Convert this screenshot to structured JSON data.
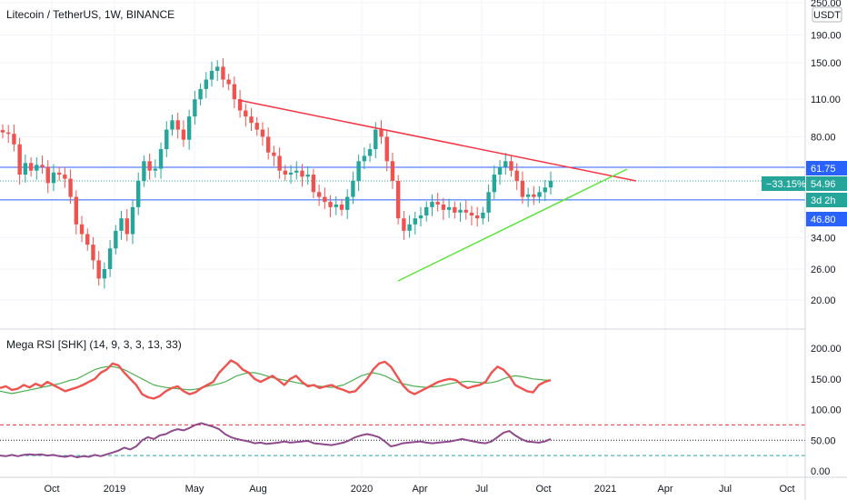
{
  "chart_data": {
    "type": "candlestick",
    "title": "Litecoin / TetherUS, 1W, BINANCE",
    "currency": "USDT",
    "price_axis": {
      "scale": "log",
      "ticks": [
        "250.00",
        "190.00",
        "150.00",
        "110.00",
        "80.00",
        "61.75",
        "54.96",
        "46.80",
        "34.00",
        "26.00",
        "20.00"
      ],
      "tick_values": [
        250,
        190,
        150,
        110,
        80,
        61.75,
        54.96,
        46.8,
        34,
        26,
        20
      ]
    },
    "time_axis": {
      "ticks": [
        "Oct",
        "2019",
        "May",
        "Aug",
        "2020",
        "Apr",
        "Jul",
        "Oct",
        "2021",
        "Apr",
        "Jul",
        "Oct"
      ]
    },
    "price_labels": {
      "upper_level": "61.75",
      "current_price": "54.96",
      "change_pct": "−33.15%",
      "countdown": "3d 2h",
      "lower_level": "46.80"
    },
    "horizontal_levels": [
      61.75,
      46.8
    ],
    "current_price": 54.96,
    "trendlines": [
      {
        "name": "resistance",
        "color": "#f23645",
        "from": [
          "2019-06",
          112
        ],
        "to": [
          "2021-03",
          59
        ]
      },
      {
        "name": "support",
        "color": "#5ce33a",
        "from": [
          "2020-03",
          24
        ],
        "to": [
          "2021-02",
          63
        ]
      }
    ],
    "closes": [
      83,
      82,
      75,
      58,
      64,
      60,
      63,
      62,
      54,
      59,
      58,
      56,
      48,
      38,
      35,
      32,
      28,
      24,
      26,
      31,
      36,
      40,
      35,
      44,
      55,
      65,
      60,
      61,
      72,
      85,
      92,
      85,
      78,
      95,
      110,
      120,
      130,
      140,
      145,
      130,
      125,
      110,
      100,
      95,
      90,
      85,
      80,
      70,
      68,
      60,
      58,
      59,
      60,
      57,
      58,
      50,
      48,
      46,
      44,
      45,
      43,
      48,
      55,
      65,
      68,
      72,
      85,
      80,
      65,
      55,
      40,
      36,
      38,
      40,
      41,
      44,
      46,
      45,
      43,
      44,
      42,
      43,
      42,
      41,
      40,
      42,
      50,
      58,
      62,
      65,
      60,
      55,
      48,
      49,
      48,
      50,
      52,
      55
    ],
    "colors": {
      "up": "#26a69a",
      "down": "#ef5350",
      "resistance": "#f23645",
      "support": "#5ce33a",
      "level_line": "#2962ff"
    },
    "indicator": {
      "title": "Mega RSI [SHK] (14, 9, 3, 3, 13, 33)",
      "ticks": [
        "200.00",
        "150.00",
        "100.00",
        "50.00",
        "0.00"
      ],
      "tick_values": [
        200,
        150,
        100,
        50,
        0
      ],
      "red_series": [
        135,
        138,
        132,
        134,
        140,
        136,
        142,
        138,
        145,
        140,
        135,
        130,
        133,
        136,
        140,
        145,
        150,
        160,
        165,
        175,
        172,
        160,
        150,
        140,
        125,
        120,
        118,
        122,
        130,
        135,
        138,
        130,
        125,
        128,
        135,
        140,
        145,
        160,
        170,
        180,
        175,
        165,
        160,
        150,
        145,
        150,
        155,
        148,
        140,
        150,
        155,
        145,
        138,
        140,
        135,
        138,
        140,
        135,
        132,
        128,
        130,
        140,
        150,
        165,
        175,
        178,
        170,
        155,
        140,
        130,
        125,
        130,
        135,
        140,
        145,
        148,
        150,
        148,
        140,
        135,
        138,
        140,
        145,
        160,
        170,
        165,
        155,
        140,
        135,
        130,
        128,
        140,
        145,
        148
      ],
      "green_series": [
        130,
        128,
        126,
        128,
        130,
        132,
        134,
        136,
        138,
        140,
        142,
        145,
        148,
        150,
        155,
        160,
        165,
        168,
        170,
        170,
        168,
        165,
        160,
        155,
        150,
        145,
        140,
        138,
        136,
        135,
        134,
        133,
        132,
        133,
        135,
        138,
        140,
        142,
        145,
        150,
        155,
        158,
        160,
        160,
        158,
        155,
        152,
        150,
        148,
        146,
        144,
        142,
        140,
        139,
        138,
        137,
        136,
        138,
        140,
        145,
        150,
        155,
        158,
        160,
        158,
        155,
        150,
        145,
        142,
        140,
        138,
        137,
        136,
        137,
        138,
        140,
        142,
        144,
        145,
        146,
        145,
        144,
        143,
        144,
        146,
        150,
        153,
        155,
        154,
        152,
        150,
        149,
        148,
        148
      ],
      "level_lines": [
        75,
        50,
        25
      ],
      "purple_series": [
        25,
        24,
        26,
        24,
        26,
        27,
        26,
        27,
        25,
        26,
        24,
        23,
        25,
        22,
        24,
        23,
        26,
        24,
        27,
        30,
        33,
        38,
        35,
        40,
        50,
        55,
        52,
        58,
        60,
        65,
        68,
        66,
        70,
        75,
        78,
        75,
        72,
        68,
        60,
        55,
        52,
        50,
        48,
        45,
        46,
        44,
        45,
        46,
        48,
        46,
        47,
        48,
        49,
        45,
        44,
        43,
        42,
        44,
        46,
        50,
        55,
        58,
        60,
        58,
        55,
        48,
        40,
        42,
        45,
        46,
        47,
        48,
        46,
        45,
        46,
        47,
        48,
        50,
        52,
        50,
        48,
        46,
        45,
        48,
        55,
        62,
        65,
        58,
        52,
        48,
        47,
        46,
        48,
        52
      ]
    }
  }
}
